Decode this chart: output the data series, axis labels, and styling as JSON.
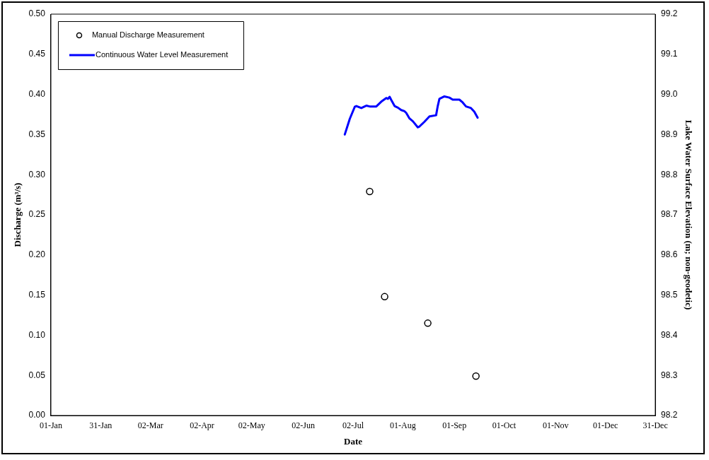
{
  "chart_data": {
    "type": "scatter",
    "xlabel": "Date",
    "ylabel": "Discharge (m³/s)",
    "y2label": "Lake Water Surface Elevation (m; non-geodetic)",
    "xlim": [
      "--01-01",
      "--12-31"
    ],
    "xticks": [
      {
        "value": "--01-01",
        "label": "01-Jan"
      },
      {
        "value": "--01-31",
        "label": "31-Jan"
      },
      {
        "value": "--03-02",
        "label": "02-Mar"
      },
      {
        "value": "--04-02",
        "label": "02-Apr"
      },
      {
        "value": "--05-02",
        "label": "02-May"
      },
      {
        "value": "--06-02",
        "label": "02-Jun"
      },
      {
        "value": "--07-02",
        "label": "02-Jul"
      },
      {
        "value": "--08-01",
        "label": "01-Aug"
      },
      {
        "value": "--09-01",
        "label": "01-Sep"
      },
      {
        "value": "--10-01",
        "label": "01-Oct"
      },
      {
        "value": "--11-01",
        "label": "01-Nov"
      },
      {
        "value": "--12-01",
        "label": "01-Dec"
      },
      {
        "value": "--12-31",
        "label": "31-Dec"
      }
    ],
    "ylim": [
      0,
      0.5
    ],
    "yticks": [
      {
        "value": 0,
        "label": "0.00"
      },
      {
        "value": 0.05,
        "label": "0.05"
      },
      {
        "value": 0.1,
        "label": "0.10"
      },
      {
        "value": 0.15,
        "label": "0.15"
      },
      {
        "value": 0.2,
        "label": "0.20"
      },
      {
        "value": 0.25,
        "label": "0.25"
      },
      {
        "value": 0.3,
        "label": "0.30"
      },
      {
        "value": 0.35,
        "label": "0.35"
      },
      {
        "value": 0.4,
        "label": "0.40"
      },
      {
        "value": 0.45,
        "label": "0.45"
      },
      {
        "value": 0.5,
        "label": "0.50"
      }
    ],
    "y2lim": [
      98.2,
      99.2
    ],
    "y2ticks": [
      98.2,
      98.3,
      98.4,
      98.5,
      98.6,
      98.7,
      98.8,
      98.9,
      {
        "value": 99,
        "label": "99.0"
      },
      99.1,
      99.2
    ],
    "grid": false,
    "legend": "top left",
    "series": [
      {
        "name": "Manual Discharge Measurement",
        "type": "scatter",
        "color": "#000000",
        "marker": "circle",
        "x": [
          "--07-12",
          "--07-21",
          "--08-16",
          "--09-14"
        ],
        "values": [
          0.279,
          0.148,
          0.115,
          0.049
        ]
      },
      {
        "name": "Continuous Water Level Measurement",
        "type": "line",
        "color": "#0000ff",
        "marker": "none",
        "line_style": "solid",
        "axis": "y2",
        "x": [
          "--06-27",
          "--06-30",
          "--07-03",
          "--07-04",
          "--07-07",
          "--07-09",
          "--07-10",
          "--07-12",
          "--07-16",
          "--07-18",
          "--07-19",
          "--07-22",
          "--07-23",
          "--07-24",
          "--07-25",
          "--07-27",
          "--07-29",
          "--07-31",
          "--08-02",
          "--08-03",
          "--08-05",
          "--08-07",
          "--08-10",
          "--08-11",
          "--08-14",
          "--08-17",
          "--08-21",
          "--08-22",
          "--08-23",
          "--08-26",
          "--08-29",
          "--08-31",
          "--09-04",
          "--09-06",
          "--09-08",
          "--09-11",
          "--09-13",
          "--09-15"
        ],
        "values": [
          98.9,
          98.939,
          98.969,
          98.971,
          98.966,
          98.97,
          98.972,
          98.97,
          98.97,
          98.978,
          98.982,
          98.991,
          98.989,
          98.994,
          98.986,
          98.971,
          98.967,
          98.961,
          98.958,
          98.954,
          98.94,
          98.933,
          98.918,
          98.92,
          98.932,
          98.945,
          98.948,
          98.971,
          98.989,
          98.995,
          98.992,
          98.987,
          98.987,
          98.98,
          98.97,
          98.966,
          98.957,
          98.942
        ]
      }
    ]
  }
}
